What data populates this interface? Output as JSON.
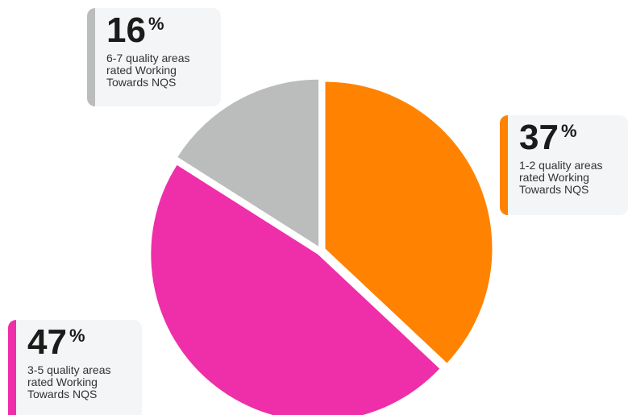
{
  "chart_data": {
    "type": "pie",
    "slices": [
      {
        "label": "1-2 quality areas rated Working Towards NQS",
        "value": 37,
        "color": "#ff8200"
      },
      {
        "label": "3-5 quality areas rated Working Towards NQS",
        "value": 47,
        "color": "#ee2fa9"
      },
      {
        "label": "6-7 quality areas rated Working Towards NQS",
        "value": 16,
        "color": "#bbbcbc"
      }
    ],
    "percent_symbol": "%",
    "callouts": {
      "orange": {
        "value": "37",
        "desc": "1-2 quality areas rated Working Towards NQS"
      },
      "pink": {
        "value": "47",
        "desc": "3-5 quality areas rated Working Towards NQS"
      },
      "grey": {
        "value": "16",
        "desc": "6-7 quality areas rated Working Towards NQS"
      }
    }
  }
}
